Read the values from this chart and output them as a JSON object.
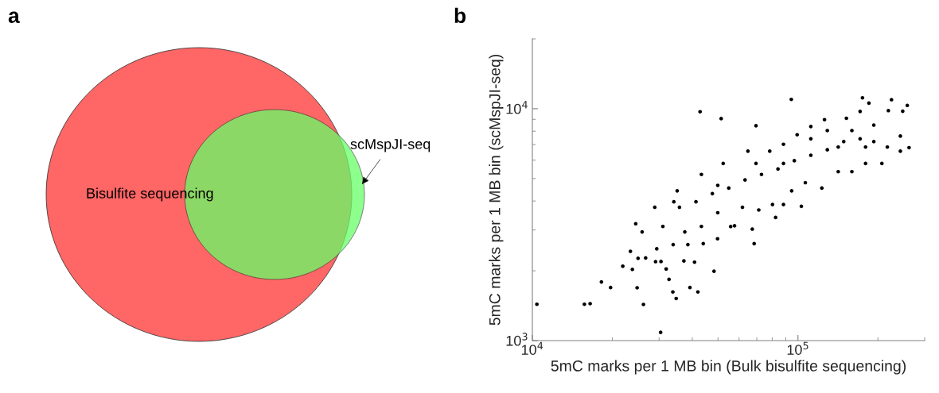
{
  "chart_data": [
    {
      "type": "other",
      "title": "a",
      "categories": [
        "Bisulfite sequencing",
        "scMspJI-seq"
      ],
      "colors": [
        "#ff6666",
        "#66ff66"
      ]
    },
    {
      "type": "scatter",
      "title": "b",
      "xlabel": "5mC marks per 1 MB bin (Bulk bisulfite sequencing)",
      "ylabel": "5mC marks per 1 MB bin (scMspJI-seq)",
      "log": "xy",
      "xlim": [
        10000,
        300000
      ],
      "ylim": [
        1000,
        20000
      ],
      "xticks": [
        {
          "value": 10000,
          "label": "10$^{4}$"
        },
        {
          "value": 100000,
          "label": "10$^{5}$"
        }
      ],
      "yticks": [
        {
          "value": 1000,
          "label": "10$^{3}$"
        },
        {
          "value": 10000,
          "label": "10$^{4}$"
        }
      ],
      "marker": "circle",
      "grid": false,
      "series": [
        {
          "color": "#000000",
          "x": [
            10400,
            15700,
            16500,
            18200,
            19700,
            21900,
            23800,
            24800,
            26200,
            30400,
            23400,
            25000,
            24500,
            25900,
            26700,
            29100,
            30500,
            31900,
            32700,
            33800,
            34800,
            39200,
            42000,
            48300,
            37200,
            40800,
            38500,
            33900,
            29400,
            44000,
            49800,
            68400,
            67300,
            42800,
            51400,
            69500,
            94400,
            175000,
            225000,
            258000,
            262000,
            248000,
            219000,
            185000,
            103000,
            82400,
            55800,
            57700,
            243000,
            243000,
            28900,
            34100,
            35100,
            43300,
            52300,
            64800,
            78300,
            88200,
            99300,
            111800,
            125900,
            152200,
            171400,
            31000,
            37500,
            43300,
            49900,
            61800,
            71200,
            80200,
            88200,
            94700,
            106600,
            123000,
            141800,
            159600,
            179700,
            207000,
            35800,
            41300,
            47600,
            54900,
            63200,
            72900,
            84100,
            96900,
            111800,
            129000,
            148700,
            171400,
            193000,
            217000,
            141800,
            159600,
            193000,
            129000,
            69500,
            49900,
            88200,
            111800,
            179700
          ],
          "values": [
            1435,
            1435,
            1443,
            1791,
            1694,
            2094,
            2028,
            1690,
            1432,
            1085,
            2427,
            2265,
            3192,
            2943,
            2273,
            2190,
            2193,
            2037,
            1837,
            1621,
            1519,
            1694,
            1621,
            1992,
            2206,
            2179,
            2594,
            2594,
            2489,
            2619,
            2749,
            2619,
            3027,
            9706,
            9065,
            8445,
            10970,
            11140,
            10940,
            10330,
            6792,
            9754,
            9817,
            10570,
            3795,
            3396,
            3104,
            3126,
            6561,
            7620,
            3758,
            3969,
            4424,
            5206,
            5807,
            6562,
            6562,
            7024,
            7723,
            8381,
            8971,
            9094,
            9732,
            3107,
            2943,
            3107,
            3560,
            3758,
            3658,
            3862,
            3862,
            4424,
            4799,
            4546,
            5351,
            5351,
            5807,
            5807,
            3758,
            3969,
            4305,
            4546,
            4932,
            5206,
            5498,
            5967,
            6300,
            6651,
            7216,
            7416,
            7216,
            6834,
            6834,
            8047,
            8499,
            8047,
            5807,
            4671,
            5807,
            7416,
            6834
          ]
        }
      ]
    }
  ]
}
